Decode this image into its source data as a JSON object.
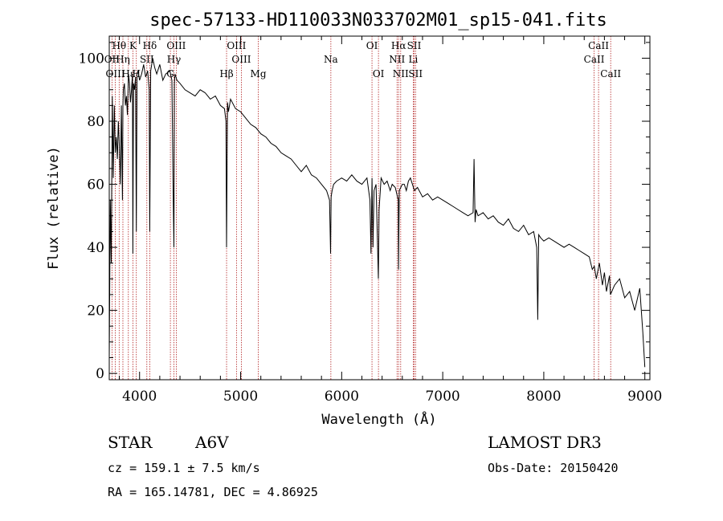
{
  "chart_data": {
    "type": "line",
    "title": "spec-57133-HD110033N033702M01_sp15-041.fits",
    "xlabel": "Wavelength (Å)",
    "ylabel": "Flux (relative)",
    "xlim": [
      3700,
      9050
    ],
    "ylim": [
      -2,
      107
    ],
    "xticks": [
      4000,
      5000,
      6000,
      7000,
      8000,
      9000
    ],
    "yticks": [
      0,
      20,
      40,
      60,
      80,
      100
    ],
    "series": [
      {
        "name": "spectrum",
        "x": [
          3700,
          3710,
          3720,
          3730,
          3740,
          3750,
          3760,
          3770,
          3780,
          3790,
          3800,
          3810,
          3820,
          3830,
          3835,
          3840,
          3850,
          3860,
          3870,
          3880,
          3890,
          3900,
          3910,
          3920,
          3930,
          3934,
          3940,
          3950,
          3960,
          3968,
          3975,
          3985,
          4000,
          4020,
          4040,
          4060,
          4080,
          4095,
          4101,
          4110,
          4130,
          4150,
          4170,
          4200,
          4230,
          4260,
          4300,
          4320,
          4330,
          4340,
          4345,
          4350,
          4370,
          4400,
          4450,
          4500,
          4550,
          4600,
          4650,
          4700,
          4750,
          4800,
          4840,
          4855,
          4861,
          4870,
          4880,
          4900,
          4950,
          5000,
          5050,
          5100,
          5150,
          5200,
          5250,
          5300,
          5350,
          5400,
          5450,
          5500,
          5550,
          5600,
          5650,
          5700,
          5750,
          5800,
          5850,
          5880,
          5890,
          5896,
          5905,
          5920,
          5950,
          6000,
          6050,
          6100,
          6150,
          6200,
          6250,
          6280,
          6290,
          6300,
          6310,
          6320,
          6340,
          6363,
          6370,
          6390,
          6420,
          6450,
          6480,
          6500,
          6530,
          6560,
          6563,
          6570,
          6600,
          6620,
          6640,
          6660,
          6680,
          6700,
          6720,
          6750,
          6800,
          6850,
          6900,
          6950,
          7000,
          7050,
          7100,
          7150,
          7200,
          7250,
          7300,
          7310,
          7320,
          7330,
          7350,
          7400,
          7450,
          7500,
          7550,
          7600,
          7650,
          7700,
          7750,
          7800,
          7850,
          7900,
          7930,
          7940,
          7950,
          7970,
          8000,
          8050,
          8100,
          8150,
          8200,
          8250,
          8300,
          8350,
          8400,
          8450,
          8480,
          8500,
          8520,
          8550,
          8580,
          8600,
          8620,
          8650,
          8660,
          8700,
          8750,
          8800,
          8850,
          8900,
          8950,
          8980,
          9000
        ],
        "y": [
          5,
          55,
          35,
          88,
          62,
          85,
          70,
          75,
          68,
          80,
          72,
          60,
          85,
          55,
          85,
          90,
          92,
          85,
          88,
          82,
          95,
          92,
          86,
          90,
          95,
          38,
          92,
          90,
          94,
          45,
          95,
          96,
          93,
          95,
          98,
          94,
          96,
          90,
          45,
          96,
          100,
          97,
          95,
          98,
          93,
          95,
          96,
          93,
          62,
          40,
          92,
          95,
          93,
          92,
          90,
          89,
          88,
          90,
          89,
          87,
          88,
          85,
          84,
          80,
          40,
          86,
          83,
          87,
          84,
          83,
          81,
          79,
          78,
          76,
          75,
          73,
          72,
          70,
          69,
          68,
          66,
          64,
          66,
          63,
          62,
          60,
          58,
          55,
          38,
          56,
          58,
          60,
          61,
          62,
          61,
          63,
          61,
          60,
          62,
          55,
          38,
          62,
          40,
          58,
          60,
          30,
          52,
          62,
          60,
          61,
          58,
          60,
          59,
          55,
          33,
          58,
          60,
          60,
          58,
          61,
          62,
          60,
          58,
          59,
          56,
          57,
          55,
          56,
          55,
          54,
          53,
          52,
          51,
          50,
          51,
          68,
          48,
          52,
          50,
          51,
          49,
          50,
          48,
          47,
          49,
          46,
          45,
          47,
          44,
          45,
          40,
          17,
          44,
          43,
          42,
          43,
          42,
          41,
          40,
          41,
          40,
          39,
          38,
          37,
          33,
          34,
          30,
          35,
          28,
          32,
          26,
          31,
          25,
          28,
          30,
          24,
          26,
          20,
          27,
          13,
          2
        ]
      }
    ],
    "lines": [
      {
        "label": "Hθ",
        "x": 3798,
        "row": 0
      },
      {
        "label": "OII",
        "x": 3727,
        "row": 1
      },
      {
        "label": "OIII",
        "x": 3760,
        "row": 2
      },
      {
        "label": "K",
        "x": 3934,
        "row": 0
      },
      {
        "label": "Hη",
        "x": 3835,
        "row": 1
      },
      {
        "label": "Hε",
        "x": 3889,
        "row": 2
      },
      {
        "label": "Hδ",
        "x": 4101,
        "row": 0
      },
      {
        "label": "SII",
        "x": 4072,
        "row": 1
      },
      {
        "label": "H",
        "x": 3968,
        "row": 2
      },
      {
        "label": "OIII",
        "x": 4363,
        "row": 0
      },
      {
        "label": "Hγ",
        "x": 4340,
        "row": 1
      },
      {
        "label": "G",
        "x": 4305,
        "row": 2
      },
      {
        "label": "OIII",
        "x": 4959,
        "row": 0
      },
      {
        "label": "OIII",
        "x": 5007,
        "row": 1
      },
      {
        "label": "Hβ",
        "x": 4861,
        "row": 2
      },
      {
        "label": "Mg",
        "x": 5175,
        "row": 2
      },
      {
        "label": "Na",
        "x": 5893,
        "row": 1
      },
      {
        "label": "OI",
        "x": 6300,
        "row": 0
      },
      {
        "label": "OI",
        "x": 6364,
        "row": 2
      },
      {
        "label": "Hα",
        "x": 6563,
        "row": 0
      },
      {
        "label": "NII",
        "x": 6548,
        "row": 1
      },
      {
        "label": "NII",
        "x": 6584,
        "row": 2
      },
      {
        "label": "SII",
        "x": 6717,
        "row": 0
      },
      {
        "label": "Li",
        "x": 6708,
        "row": 1
      },
      {
        "label": "SII",
        "x": 6731,
        "row": 2
      },
      {
        "label": "CaII",
        "x": 8542,
        "row": 0
      },
      {
        "label": "CaII",
        "x": 8498,
        "row": 1
      },
      {
        "label": "CaII",
        "x": 8662,
        "row": 2
      }
    ]
  },
  "info": {
    "object_class": "STAR",
    "subclass": "A6V",
    "survey": "LAMOST DR3",
    "cz": "cz = 159.1 ± 7.5 km/s",
    "obs_date": "Obs-Date: 20150420",
    "coords": "RA = 165.14781, DEC =    4.86925"
  },
  "colors": {
    "line": "#000000",
    "marker": "#b22222"
  }
}
